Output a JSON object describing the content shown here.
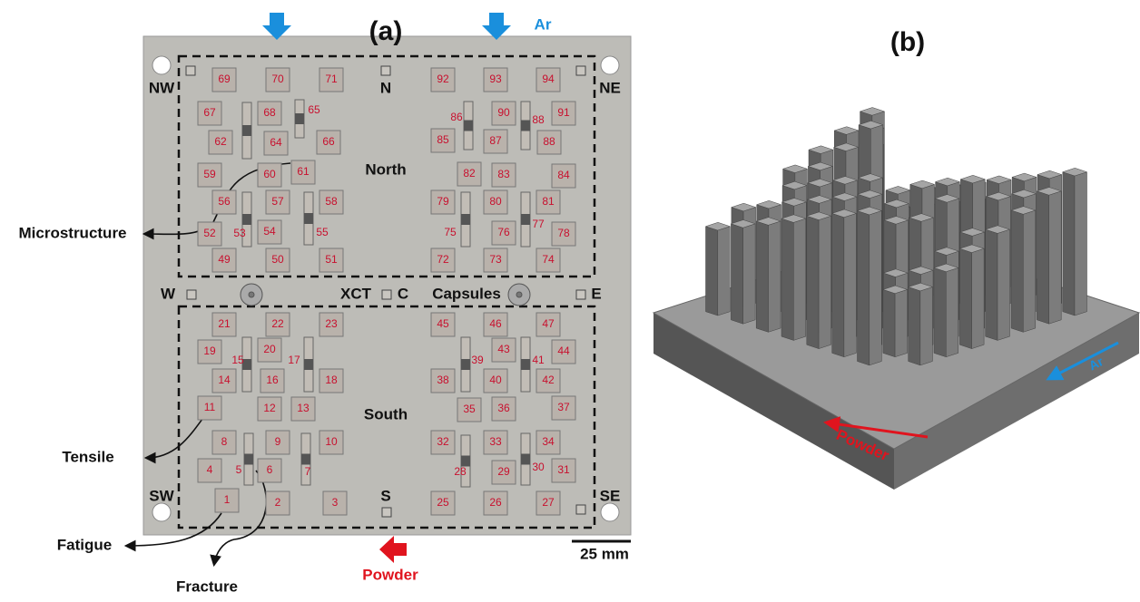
{
  "panel_a": {
    "label": "(a)",
    "flow_label": "Ar",
    "powder_label": "Powder",
    "directions": {
      "nw": "NW",
      "n": "N",
      "ne": "NE",
      "w": "W",
      "c": "C",
      "e": "E",
      "sw": "SW",
      "s": "S",
      "se": "SE"
    },
    "xct": "XCT",
    "capsules": "Capsules",
    "regions": [
      "North",
      "South"
    ],
    "specimen_types": [
      "Microstructure",
      "Tensile",
      "Fatigue",
      "Fracture"
    ],
    "scale_bar": "25 mm",
    "specimens": [
      69,
      70,
      71,
      92,
      93,
      94,
      67,
      68,
      65,
      86,
      90,
      88,
      91,
      62,
      64,
      66,
      85,
      87,
      88,
      59,
      60,
      61,
      82,
      83,
      84,
      56,
      57,
      58,
      79,
      80,
      81,
      52,
      53,
      54,
      55,
      75,
      76,
      77,
      78,
      49,
      50,
      51,
      72,
      73,
      74,
      21,
      22,
      23,
      45,
      46,
      47,
      19,
      20,
      15,
      17,
      39,
      43,
      41,
      44,
      14,
      16,
      18,
      38,
      40,
      42,
      11,
      12,
      13,
      35,
      36,
      37,
      8,
      9,
      10,
      32,
      33,
      34,
      4,
      5,
      6,
      7,
      28,
      29,
      30,
      31,
      1,
      2,
      3,
      25,
      26,
      27
    ]
  },
  "panel_b": {
    "label": "(b)",
    "flow_label": "Ar",
    "powder_label": "Powder"
  }
}
